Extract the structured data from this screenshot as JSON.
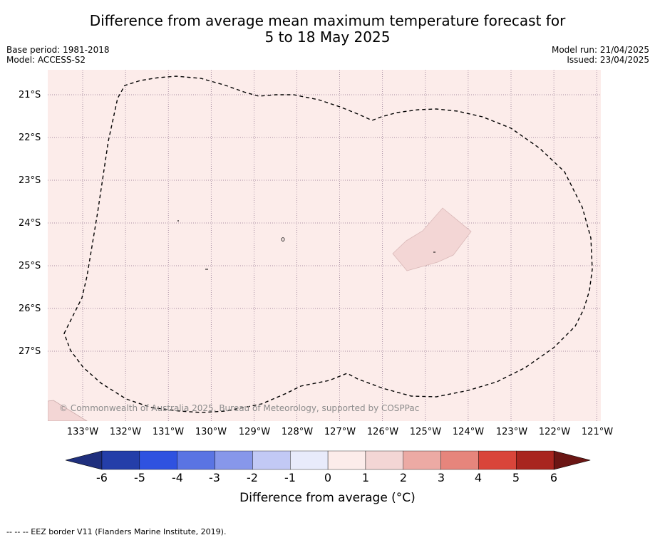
{
  "title_line1": "Difference from average mean maximum temperature forecast for",
  "title_line2": "5 to 18 May 2025",
  "base_period": "Base period: 1981-2018",
  "model": "Model: ACCESS-S2",
  "model_run": "Model run: 21/04/2025",
  "issued": "Issued: 23/04/2025",
  "copyright": "© Commonwealth of Australia 2025, Bureau of Meteorology, supported by COSPPac",
  "footnote": "--  --  -- EEZ border V11 (Flanders Marine Institute, 2019).",
  "lat_labels": [
    "21°S",
    "22°S",
    "23°S",
    "24°S",
    "25°S",
    "26°S",
    "27°S"
  ],
  "lon_labels": [
    "133°W",
    "132°W",
    "131°W",
    "130°W",
    "129°W",
    "128°W",
    "127°W",
    "126°W",
    "125°W",
    "124°W",
    "123°W",
    "122°W",
    "121°W"
  ],
  "colorbar": {
    "label": "Difference from average (°C)",
    "ticks": [
      "-6",
      "-5",
      "-4",
      "-3",
      "-2",
      "-1",
      "0",
      "1",
      "2",
      "3",
      "4",
      "5",
      "6"
    ],
    "colors": [
      "#1f2f7d",
      "#243ea9",
      "#2f52e0",
      "#5a74e3",
      "#8797ea",
      "#c2c9f5",
      "#e8ebfb",
      "#fcecea",
      "#f3d6d5",
      "#ecaaa4",
      "#e6857c",
      "#d9453a",
      "#a8251f",
      "#6b1614"
    ],
    "extend": "both"
  },
  "map": {
    "background_anomaly_band": "0 to 1",
    "background_color": "#fcecea",
    "warm_patch_band": "1 to 2",
    "warm_patch_color": "#f3d6d5",
    "gridline_color": "#8a6e8a",
    "eez_style": "dashed",
    "eez_color": "#000000"
  }
}
